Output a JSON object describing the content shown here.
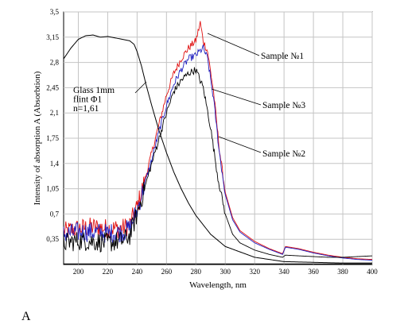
{
  "chart_data": {
    "type": "line",
    "xlabel": "Wavelength, nm",
    "ylabel": "Intensity of absorption A (Absorbtion)",
    "xlim": [
      190,
      400
    ],
    "ylim": [
      0,
      3.5
    ],
    "xticks": [
      "200",
      "220",
      "240",
      "260",
      "280",
      "300",
      "320",
      "340",
      "360",
      "380",
      "400"
    ],
    "yticks": [
      "0,35",
      "0,7",
      "1,05",
      "1,4",
      "1,75",
      "2,1",
      "2,45",
      "2,8",
      "3,15",
      "3,5"
    ],
    "grid": true,
    "series": [
      {
        "name": "Glass 1mm flint Φ1 n=1,61",
        "color": "#000000",
        "x": [
          190,
          195,
          200,
          205,
          210,
          215,
          220,
          225,
          230,
          235,
          238,
          240,
          243,
          246,
          250,
          255,
          260,
          265,
          270,
          275,
          280,
          290,
          300,
          320,
          340,
          360,
          380,
          400
        ],
        "y": [
          2.85,
          3.0,
          3.12,
          3.17,
          3.18,
          3.15,
          3.16,
          3.14,
          3.12,
          3.1,
          3.05,
          2.95,
          2.75,
          2.5,
          2.2,
          1.85,
          1.55,
          1.28,
          1.05,
          0.85,
          0.68,
          0.42,
          0.25,
          0.1,
          0.04,
          0.03,
          0.02,
          0.02
        ]
      },
      {
        "name": "Sample №1",
        "color": "#e01010",
        "x": [
          190,
          200,
          210,
          220,
          230,
          235,
          240,
          245,
          250,
          255,
          260,
          265,
          270,
          275,
          280,
          283,
          285,
          288,
          292,
          296,
          300,
          305,
          310,
          320,
          330,
          339,
          341,
          350,
          360,
          370,
          380,
          390,
          400
        ],
        "y": [
          0.45,
          0.5,
          0.52,
          0.5,
          0.5,
          0.55,
          0.8,
          1.15,
          1.55,
          1.95,
          2.35,
          2.65,
          2.85,
          3.0,
          3.1,
          3.35,
          3.1,
          2.95,
          2.4,
          1.6,
          1.0,
          0.65,
          0.47,
          0.32,
          0.22,
          0.15,
          0.25,
          0.22,
          0.17,
          0.13,
          0.1,
          0.08,
          0.07
        ]
      },
      {
        "name": "Sample №3",
        "color": "#1f1fbf",
        "x": [
          190,
          200,
          210,
          220,
          230,
          235,
          240,
          245,
          250,
          255,
          260,
          265,
          270,
          275,
          280,
          285,
          288,
          292,
          296,
          300,
          305,
          310,
          320,
          330,
          339,
          341,
          350,
          360,
          370,
          380,
          390,
          400
        ],
        "y": [
          0.42,
          0.45,
          0.45,
          0.43,
          0.45,
          0.5,
          0.75,
          1.1,
          1.45,
          1.85,
          2.2,
          2.5,
          2.7,
          2.85,
          2.9,
          3.0,
          2.85,
          2.3,
          1.55,
          0.97,
          0.62,
          0.45,
          0.3,
          0.21,
          0.14,
          0.24,
          0.21,
          0.16,
          0.12,
          0.09,
          0.07,
          0.06
        ]
      },
      {
        "name": "Sample №2",
        "color": "#000000",
        "x": [
          190,
          200,
          210,
          220,
          230,
          235,
          240,
          245,
          250,
          255,
          260,
          265,
          270,
          275,
          280,
          285,
          290,
          295,
          300,
          305,
          310,
          320,
          330,
          339,
          341,
          350,
          360,
          370,
          380,
          390,
          400
        ],
        "y": [
          0.3,
          0.33,
          0.32,
          0.3,
          0.33,
          0.4,
          0.7,
          1.05,
          1.4,
          1.75,
          2.1,
          2.4,
          2.55,
          2.65,
          2.7,
          2.45,
          1.9,
          1.2,
          0.7,
          0.42,
          0.3,
          0.2,
          0.14,
          0.1,
          0.13,
          0.12,
          0.11,
          0.1,
          0.1,
          0.11,
          0.12
        ]
      }
    ],
    "annotations": [
      {
        "lines": [
          "Glass 1mm",
          "flint Φ1",
          "n=1,61"
        ],
        "target": "Glass 1mm flint Φ1 n=1,61"
      },
      {
        "lines": [
          "Sample №1"
        ],
        "target": "Sample №1"
      },
      {
        "lines": [
          "Sample №3"
        ],
        "target": "Sample №3"
      },
      {
        "lines": [
          "Sample №2"
        ],
        "target": "Sample №2"
      }
    ]
  },
  "caption": "A"
}
